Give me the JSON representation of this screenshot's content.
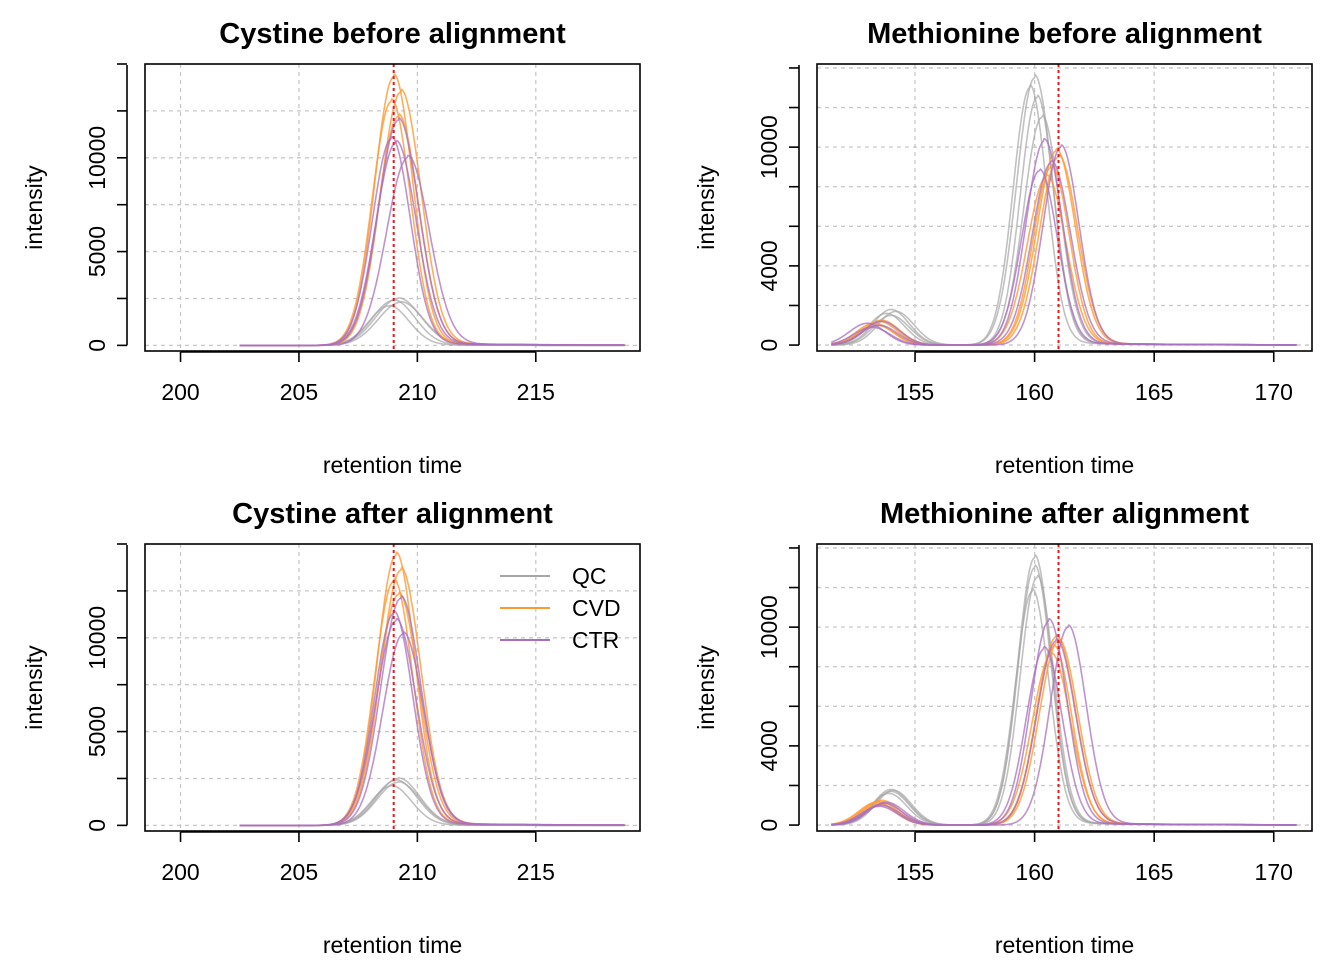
{
  "colors": {
    "QC": "#a6a6a6",
    "CVD": "#ff9a33",
    "CTR": "#a86fc0",
    "refline": "#e41a1c"
  },
  "legend": {
    "items": [
      "QC",
      "CVD",
      "CTR"
    ],
    "panel": 2,
    "placement": "top-right"
  },
  "chart_data": [
    {
      "type": "line",
      "title": "Cystine before alignment",
      "xlabel": "retention time",
      "ylabel": "intensity",
      "xlim": [
        198.5,
        219.4
      ],
      "ylim": [
        -300,
        15000
      ],
      "xticks": [
        200,
        205,
        210,
        215
      ],
      "yticks": [
        0,
        5000,
        10000
      ],
      "grid": true,
      "ref_x": 209.0,
      "series": [
        {
          "group": "QC",
          "peak": 2500,
          "center": 209.2,
          "width": 0.95,
          "start": 206.5,
          "end": 218.8
        },
        {
          "group": "QC",
          "peak": 2400,
          "center": 209.0,
          "width": 0.9,
          "start": 206.5,
          "end": 218.8
        },
        {
          "group": "QC",
          "peak": 2300,
          "center": 209.3,
          "width": 0.95,
          "start": 206.5,
          "end": 218.8
        },
        {
          "group": "QC",
          "peak": 2100,
          "center": 208.8,
          "width": 0.85,
          "start": 206.5,
          "end": 218.8
        },
        {
          "group": "CVD",
          "peak": 14300,
          "center": 209.0,
          "width": 0.8,
          "start": 202.5,
          "end": 218.8
        },
        {
          "group": "CVD",
          "peak": 13500,
          "center": 209.3,
          "width": 0.85,
          "start": 202.5,
          "end": 218.8
        },
        {
          "group": "CVD",
          "peak": 13000,
          "center": 208.9,
          "width": 0.8,
          "start": 202.5,
          "end": 218.8
        },
        {
          "group": "CVD",
          "peak": 12200,
          "center": 209.2,
          "width": 0.85,
          "start": 202.5,
          "end": 218.8
        },
        {
          "group": "CTR",
          "peak": 12000,
          "center": 209.2,
          "width": 0.85,
          "start": 202.5,
          "end": 218.8
        },
        {
          "group": "CTR",
          "peak": 11000,
          "center": 208.9,
          "width": 0.8,
          "start": 202.5,
          "end": 218.8
        },
        {
          "group": "CTR",
          "peak": 10800,
          "center": 209.1,
          "width": 0.85,
          "start": 202.5,
          "end": 218.8
        },
        {
          "group": "CTR",
          "peak": 10000,
          "center": 209.6,
          "width": 0.9,
          "start": 202.5,
          "end": 218.8
        }
      ]
    },
    {
      "type": "line",
      "title": "Methionine before alignment",
      "xlabel": "retention time",
      "ylabel": "intensity",
      "xlim": [
        150.9,
        171.6
      ],
      "ylim": [
        -300,
        14200
      ],
      "xticks": [
        155,
        160,
        165,
        170
      ],
      "yticks": [
        0,
        4000,
        10000
      ],
      "grid": true,
      "ref_x": 161.0,
      "series": [
        {
          "group": "QC",
          "peak": 13500,
          "center": 160.0,
          "width": 0.75,
          "minor_peak": 1800,
          "minor_center": 154.0,
          "start": 151.5,
          "end": 171.0
        },
        {
          "group": "QC",
          "peak": 13000,
          "center": 159.8,
          "width": 0.7,
          "minor_peak": 1600,
          "minor_center": 153.8,
          "start": 151.5,
          "end": 171.0
        },
        {
          "group": "QC",
          "peak": 12500,
          "center": 160.1,
          "width": 0.7,
          "minor_peak": 1700,
          "minor_center": 154.2,
          "start": 151.5,
          "end": 171.0
        },
        {
          "group": "QC",
          "peak": 11500,
          "center": 160.3,
          "width": 0.75,
          "minor_peak": 1500,
          "minor_center": 154.0,
          "start": 151.5,
          "end": 171.0
        },
        {
          "group": "CVD",
          "peak": 9800,
          "center": 160.9,
          "width": 0.8,
          "minor_peak": 1200,
          "minor_center": 153.5,
          "start": 151.5,
          "end": 171.0
        },
        {
          "group": "CVD",
          "peak": 9500,
          "center": 161.0,
          "width": 0.8,
          "minor_peak": 1100,
          "minor_center": 153.3,
          "start": 151.5,
          "end": 171.0
        },
        {
          "group": "CVD",
          "peak": 9000,
          "center": 160.7,
          "width": 0.75,
          "minor_peak": 1250,
          "minor_center": 153.6,
          "start": 151.5,
          "end": 171.0
        },
        {
          "group": "CVD",
          "peak": 8500,
          "center": 160.5,
          "width": 0.8,
          "minor_peak": 1000,
          "minor_center": 153.4,
          "start": 151.5,
          "end": 171.0
        },
        {
          "group": "CTR",
          "peak": 10300,
          "center": 160.4,
          "width": 0.75,
          "minor_peak": 1100,
          "minor_center": 153.0,
          "start": 151.5,
          "end": 171.0
        },
        {
          "group": "CTR",
          "peak": 10000,
          "center": 161.1,
          "width": 0.75,
          "minor_peak": 1000,
          "minor_center": 153.5,
          "start": 151.5,
          "end": 171.0
        },
        {
          "group": "CTR",
          "peak": 9200,
          "center": 160.7,
          "width": 0.8,
          "minor_peak": 900,
          "minor_center": 153.2,
          "start": 151.5,
          "end": 171.0
        },
        {
          "group": "CTR",
          "peak": 8800,
          "center": 160.2,
          "width": 0.75,
          "minor_peak": 1200,
          "minor_center": 153.6,
          "start": 151.5,
          "end": 171.0
        }
      ]
    },
    {
      "type": "line",
      "title": "Cystine after alignment",
      "xlabel": "retention time",
      "ylabel": "intensity",
      "xlim": [
        198.5,
        219.4
      ],
      "ylim": [
        -300,
        15000
      ],
      "xticks": [
        200,
        205,
        210,
        215
      ],
      "yticks": [
        0,
        5000,
        10000
      ],
      "grid": true,
      "ref_x": 209.0,
      "series": [
        {
          "group": "QC",
          "peak": 2500,
          "center": 209.2,
          "width": 0.9,
          "start": 206.5,
          "end": 218.8
        },
        {
          "group": "QC",
          "peak": 2400,
          "center": 209.1,
          "width": 0.9,
          "start": 206.5,
          "end": 218.8
        },
        {
          "group": "QC",
          "peak": 2300,
          "center": 209.2,
          "width": 0.9,
          "start": 206.5,
          "end": 218.8
        },
        {
          "group": "QC",
          "peak": 2100,
          "center": 208.9,
          "width": 0.85,
          "start": 206.5,
          "end": 218.8
        },
        {
          "group": "CVD",
          "peak": 14400,
          "center": 209.1,
          "width": 0.8,
          "start": 202.5,
          "end": 218.8
        },
        {
          "group": "CVD",
          "peak": 13600,
          "center": 209.3,
          "width": 0.85,
          "start": 202.5,
          "end": 218.8
        },
        {
          "group": "CVD",
          "peak": 13000,
          "center": 209.0,
          "width": 0.8,
          "start": 202.5,
          "end": 218.8
        },
        {
          "group": "CVD",
          "peak": 12300,
          "center": 209.2,
          "width": 0.85,
          "start": 202.5,
          "end": 218.8
        },
        {
          "group": "CTR",
          "peak": 12100,
          "center": 209.3,
          "width": 0.85,
          "start": 202.5,
          "end": 218.8
        },
        {
          "group": "CTR",
          "peak": 11300,
          "center": 209.0,
          "width": 0.8,
          "start": 202.5,
          "end": 218.8
        },
        {
          "group": "CTR",
          "peak": 10900,
          "center": 209.1,
          "width": 0.85,
          "start": 202.5,
          "end": 218.8
        },
        {
          "group": "CTR",
          "peak": 10200,
          "center": 209.4,
          "width": 0.85,
          "start": 202.5,
          "end": 218.8
        }
      ]
    },
    {
      "type": "line",
      "title": "Methionine after alignment",
      "xlabel": "retention time",
      "ylabel": "intensity",
      "xlim": [
        150.9,
        171.6
      ],
      "ylim": [
        -300,
        14200
      ],
      "xticks": [
        155,
        160,
        165,
        170
      ],
      "yticks": [
        0,
        4000,
        10000
      ],
      "grid": true,
      "ref_x": 161.0,
      "series": [
        {
          "group": "QC",
          "peak": 13500,
          "center": 160.0,
          "width": 0.7,
          "minor_peak": 1800,
          "minor_center": 154.0,
          "start": 151.5,
          "end": 171.0
        },
        {
          "group": "QC",
          "peak": 13000,
          "center": 160.0,
          "width": 0.7,
          "minor_peak": 1700,
          "minor_center": 154.0,
          "start": 151.5,
          "end": 171.0
        },
        {
          "group": "QC",
          "peak": 12500,
          "center": 160.1,
          "width": 0.7,
          "minor_peak": 1750,
          "minor_center": 154.1,
          "start": 151.5,
          "end": 171.0
        },
        {
          "group": "QC",
          "peak": 11800,
          "center": 159.9,
          "width": 0.7,
          "minor_peak": 1600,
          "minor_center": 153.9,
          "start": 151.5,
          "end": 171.0
        },
        {
          "group": "CVD",
          "peak": 9500,
          "center": 160.9,
          "width": 0.8,
          "minor_peak": 1200,
          "minor_center": 153.5,
          "start": 151.5,
          "end": 171.0
        },
        {
          "group": "CVD",
          "peak": 9300,
          "center": 161.0,
          "width": 0.8,
          "minor_peak": 1150,
          "minor_center": 153.4,
          "start": 151.5,
          "end": 171.0
        },
        {
          "group": "CVD",
          "peak": 9000,
          "center": 160.8,
          "width": 0.75,
          "minor_peak": 1250,
          "minor_center": 153.6,
          "start": 151.5,
          "end": 171.0
        },
        {
          "group": "CVD",
          "peak": 8600,
          "center": 160.7,
          "width": 0.8,
          "minor_peak": 1050,
          "minor_center": 153.5,
          "start": 151.5,
          "end": 171.0
        },
        {
          "group": "CTR",
          "peak": 10300,
          "center": 160.6,
          "width": 0.75,
          "minor_peak": 1100,
          "minor_center": 153.7,
          "start": 151.5,
          "end": 171.0
        },
        {
          "group": "CTR",
          "peak": 10000,
          "center": 161.4,
          "width": 0.75,
          "minor_peak": 1000,
          "minor_center": 153.6,
          "start": 151.5,
          "end": 171.0
        },
        {
          "group": "CTR",
          "peak": 9300,
          "center": 160.9,
          "width": 0.8,
          "minor_peak": 950,
          "minor_center": 153.5,
          "start": 151.5,
          "end": 171.0
        },
        {
          "group": "CTR",
          "peak": 8900,
          "center": 160.4,
          "width": 0.75,
          "minor_peak": 1150,
          "minor_center": 153.8,
          "start": 151.5,
          "end": 171.0
        }
      ]
    }
  ]
}
